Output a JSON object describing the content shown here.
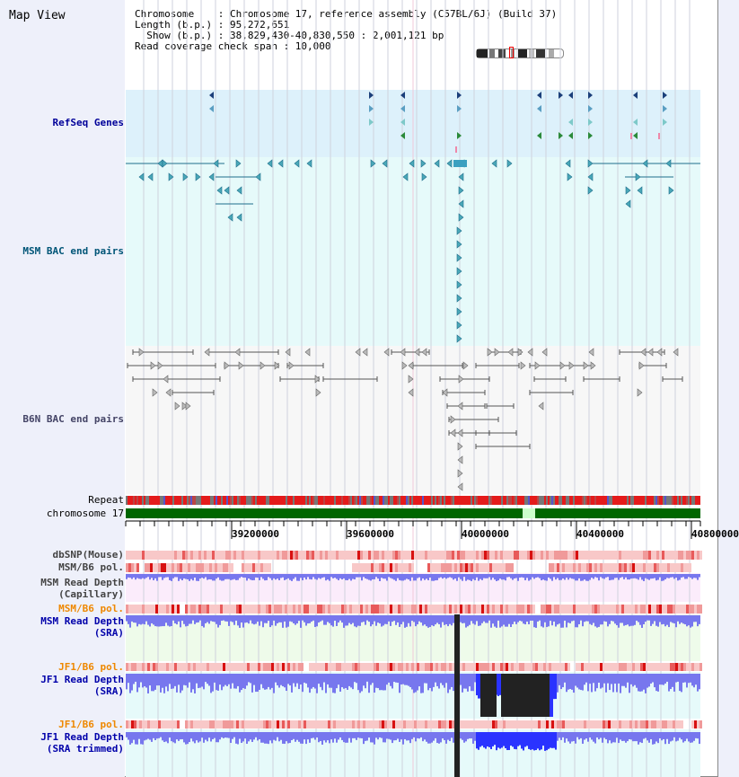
{
  "header": {
    "title": "Map View",
    "info_lines": [
      "Chromosome    : Chromosome 17, reference assembly (C57BL/6J) (Build 37)",
      "Length (b.p.) : 95,272,651",
      "  Show (b.p.) : 38,829,430-40,830,550 : 2,001,121 bp",
      "Read coverage check span : 10,000"
    ]
  },
  "tracks": {
    "refseq": {
      "label": "RefSeq Genes",
      "color": "#000099"
    },
    "msm_bac": {
      "label": "MSM BAC end pairs",
      "color": "#005577"
    },
    "b6n_bac": {
      "label": "B6N BAC end pairs",
      "color": "#444466"
    },
    "repeat": {
      "label": "Repeat"
    },
    "chromosome": {
      "label": "chromosome 17"
    },
    "dbsnp": {
      "label": "dbSNP(Mouse)"
    },
    "msm_b6_pol_1": {
      "label": "MSM/B6 pol."
    },
    "msm_depth_cap": {
      "label_1": "MSM Read Depth",
      "label_2": "(Capillary)"
    },
    "msm_b6_pol_2": {
      "label": "MSM/B6 pol.",
      "color": "#ee8800"
    },
    "msm_depth_sra": {
      "label_1": "MSM Read Depth",
      "label_2": "(SRA)",
      "color": "#0000aa"
    },
    "jf1_b6_pol_1": {
      "label": "JF1/B6 pol.",
      "color": "#ee8800"
    },
    "jf1_depth_sra": {
      "label_1": "JF1 Read Depth",
      "label_2": "(SRA)",
      "color": "#0000aa"
    },
    "jf1_b6_pol_2": {
      "label": "JF1/B6 pol.",
      "color": "#ee8800"
    },
    "jf1_depth_trim": {
      "label_1": "JF1 Read Depth",
      "label_2": "(SRA trimmed)",
      "color": "#0000aa"
    }
  },
  "axis": {
    "ticks": [
      "39200000",
      "39600000",
      "40000000",
      "40400000",
      "40800000"
    ]
  },
  "colors": {
    "refseq_bg": "#ddf1fb",
    "msm_bg": "#e6fafa",
    "b6n_bg": "#f7f7f7",
    "capillary_bg": "#fbecfb",
    "sra_bg": "#eefbea",
    "jf1_bg": "#e6fafa",
    "depth_blue": "#7777ee",
    "depth_dark": "#222222",
    "chromosome_green": "#006600"
  }
}
